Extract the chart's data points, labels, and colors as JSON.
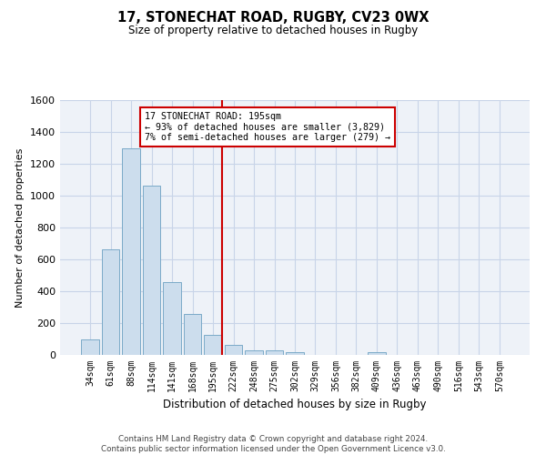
{
  "title1": "17, STONECHAT ROAD, RUGBY, CV23 0WX",
  "title2": "Size of property relative to detached houses in Rugby",
  "xlabel": "Distribution of detached houses by size in Rugby",
  "ylabel": "Number of detached properties",
  "footnote": "Contains HM Land Registry data © Crown copyright and database right 2024.\nContains public sector information licensed under the Open Government Licence v3.0.",
  "categories": [
    "34sqm",
    "61sqm",
    "88sqm",
    "114sqm",
    "141sqm",
    "168sqm",
    "195sqm",
    "222sqm",
    "248sqm",
    "275sqm",
    "302sqm",
    "329sqm",
    "356sqm",
    "382sqm",
    "409sqm",
    "436sqm",
    "463sqm",
    "490sqm",
    "516sqm",
    "543sqm",
    "570sqm"
  ],
  "values": [
    95,
    665,
    1295,
    1060,
    460,
    260,
    125,
    65,
    30,
    30,
    20,
    0,
    0,
    0,
    15,
    0,
    0,
    0,
    0,
    0,
    0
  ],
  "bar_color": "#ccdded",
  "bar_edge_color": "#7aaac8",
  "highlight_index": 6,
  "highlight_line_color": "#cc0000",
  "annotation_line1": "17 STONECHAT ROAD: 195sqm",
  "annotation_line2": "← 93% of detached houses are smaller (3,829)",
  "annotation_line3": "7% of semi-detached houses are larger (279) →",
  "annotation_box_color": "#ffffff",
  "annotation_box_edge_color": "#cc0000",
  "ylim": [
    0,
    1600
  ],
  "yticks": [
    0,
    200,
    400,
    600,
    800,
    1000,
    1200,
    1400,
    1600
  ],
  "grid_color": "#c8d4e8",
  "bg_color": "#eef2f8"
}
